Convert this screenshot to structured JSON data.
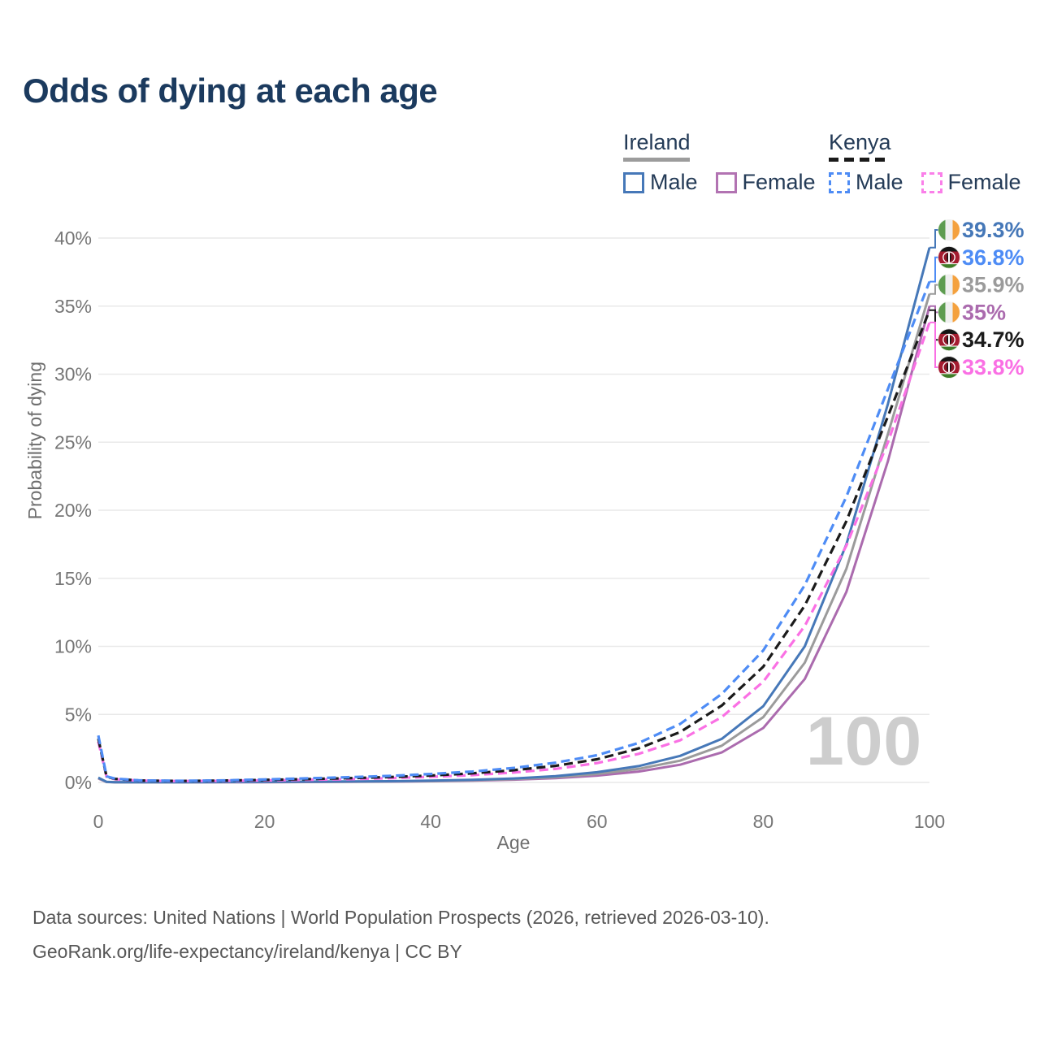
{
  "title": "Odds of dying at each age",
  "legend": {
    "groups": [
      {
        "label": "Ireland",
        "line_style": "solid",
        "line_color": "#9c9c9c",
        "items": [
          {
            "label": "Male",
            "swatch": "solid",
            "color": "#4678b8"
          },
          {
            "label": "Female",
            "swatch": "solid",
            "color": "#b273b2"
          }
        ]
      },
      {
        "label": "Kenya",
        "line_style": "dashed",
        "line_color": "#1a1a1a",
        "items": [
          {
            "label": "Male",
            "swatch": "dashed",
            "color": "#4e8cf5"
          },
          {
            "label": "Female",
            "swatch": "dashed",
            "color": "#fa7fe9"
          }
        ]
      }
    ]
  },
  "chart_data": {
    "type": "line",
    "title": "Odds of dying at each age",
    "xlabel": "Age",
    "ylabel": "Probability of dying",
    "xlim": [
      0,
      100
    ],
    "ylim": [
      0,
      40
    ],
    "grid": "horizontal-only",
    "legend_position": "top-right",
    "watermark": "100",
    "xticks": [
      {
        "value": 0,
        "label": "0"
      },
      {
        "value": 20,
        "label": "20"
      },
      {
        "value": 40,
        "label": "40"
      },
      {
        "value": 60,
        "label": "60"
      },
      {
        "value": 80,
        "label": "80"
      },
      {
        "value": 100,
        "label": "100"
      }
    ],
    "yticks": [
      {
        "value": 0,
        "label": "0%"
      },
      {
        "value": 5,
        "label": "5%"
      },
      {
        "value": 10,
        "label": "10%"
      },
      {
        "value": 15,
        "label": "15%"
      },
      {
        "value": 20,
        "label": "20%"
      },
      {
        "value": 25,
        "label": "25%"
      },
      {
        "value": 30,
        "label": "30%"
      },
      {
        "value": 35,
        "label": "35%"
      },
      {
        "value": 40,
        "label": "40%"
      }
    ],
    "x": [
      0,
      1,
      2,
      5,
      10,
      15,
      20,
      25,
      30,
      35,
      40,
      45,
      50,
      55,
      60,
      65,
      70,
      75,
      80,
      85,
      90,
      95,
      100
    ],
    "series": [
      {
        "name": "Ireland Female",
        "slug": "ireland-female",
        "country": "Ireland",
        "sex": "Female",
        "color": "#ab6bae",
        "dash": "solid",
        "end_label": "35%",
        "end_value": 35.0,
        "flag": "ireland",
        "label_color": "#ab6bae",
        "values": [
          0.29,
          0.03,
          0.015,
          0.009,
          0.009,
          0.015,
          0.02,
          0.03,
          0.04,
          0.06,
          0.09,
          0.13,
          0.2,
          0.31,
          0.5,
          0.8,
          1.3,
          2.2,
          4.0,
          7.6,
          14.0,
          23.6,
          35.0
        ]
      },
      {
        "name": "Ireland Both sexes",
        "slug": "ireland-both",
        "country": "Ireland",
        "sex": "Both",
        "color": "#9b9b9b",
        "dash": "solid",
        "end_label": "35.9%",
        "end_value": 35.9,
        "flag": "ireland",
        "label_color": "#9b9b9b",
        "values": [
          0.32,
          0.035,
          0.018,
          0.01,
          0.01,
          0.022,
          0.035,
          0.045,
          0.055,
          0.075,
          0.11,
          0.16,
          0.245,
          0.385,
          0.62,
          1.0,
          1.6,
          2.7,
          4.8,
          8.8,
          15.7,
          25.6,
          35.9
        ]
      },
      {
        "name": "Ireland Male",
        "slug": "ireland-male",
        "country": "Ireland",
        "sex": "Male",
        "color": "#4678b8",
        "dash": "solid",
        "end_label": "39.3%",
        "end_value": 39.3,
        "flag": "ireland",
        "label_color": "#4678b8",
        "values": [
          0.35,
          0.04,
          0.02,
          0.01,
          0.01,
          0.03,
          0.05,
          0.06,
          0.07,
          0.09,
          0.13,
          0.19,
          0.29,
          0.46,
          0.75,
          1.2,
          1.95,
          3.2,
          5.6,
          10.0,
          17.5,
          27.8,
          39.3
        ]
      },
      {
        "name": "Kenya Female",
        "slug": "kenya-female",
        "country": "Kenya",
        "sex": "Female",
        "color": "#fa70e4",
        "dash": "dashed",
        "end_label": "33.8%",
        "end_value": 33.8,
        "flag": "kenya",
        "label_color": "#fa70e4",
        "values": [
          3.0,
          0.4,
          0.24,
          0.13,
          0.1,
          0.12,
          0.15,
          0.19,
          0.24,
          0.31,
          0.41,
          0.54,
          0.73,
          1.0,
          1.42,
          2.1,
          3.1,
          4.8,
          7.4,
          11.5,
          17.4,
          25.0,
          33.8
        ]
      },
      {
        "name": "Kenya Both sexes",
        "slug": "kenya-both",
        "country": "Kenya",
        "sex": "Both",
        "color": "#1b1b1b",
        "dash": "dashed",
        "end_label": "34.7%",
        "end_value": 34.7,
        "flag": "kenya",
        "label_color": "#1b1b1b",
        "values": [
          3.22,
          0.42,
          0.26,
          0.14,
          0.11,
          0.135,
          0.185,
          0.245,
          0.31,
          0.395,
          0.51,
          0.67,
          0.9,
          1.22,
          1.7,
          2.5,
          3.7,
          5.65,
          8.5,
          13.0,
          19.2,
          26.9,
          34.7
        ]
      },
      {
        "name": "Kenya Male",
        "slug": "kenya-male",
        "country": "Kenya",
        "sex": "Male",
        "color": "#4e8cf5",
        "dash": "dashed",
        "end_label": "36.8%",
        "end_value": 36.8,
        "flag": "kenya",
        "label_color": "#4e8cf5",
        "values": [
          3.45,
          0.45,
          0.28,
          0.15,
          0.12,
          0.15,
          0.22,
          0.3,
          0.38,
          0.48,
          0.62,
          0.8,
          1.07,
          1.45,
          2.0,
          2.9,
          4.3,
          6.5,
          9.7,
          14.5,
          21.0,
          28.9,
          36.8
        ]
      }
    ],
    "end_labels_order_note": "labels stacked top to bottom by descending end value",
    "flag_colors": {
      "ireland": [
        "#5e9c50",
        "#efefef",
        "#f4a13e"
      ],
      "kenya": {
        "black": "#141414",
        "white": "#ffffff",
        "red": "#a51c30",
        "green": "#3f7d28",
        "shield": "#8e1527"
      }
    }
  },
  "footer": {
    "line1": "Data sources: United Nations | World Population Prospects (2026, retrieved 2026-03-10).",
    "line2": "GeoRank.org/life-expectancy/ireland/kenya | CC BY"
  }
}
